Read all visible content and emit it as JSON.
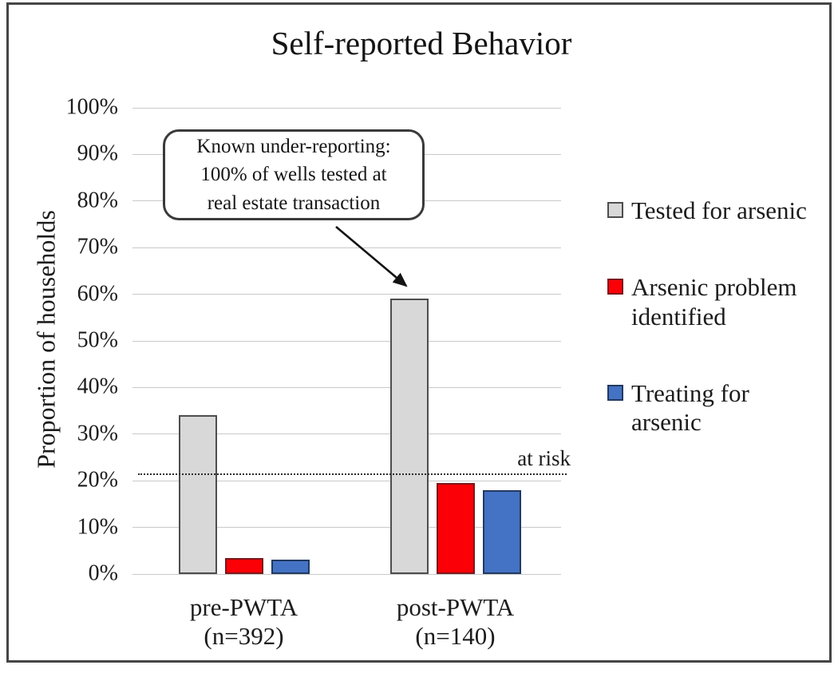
{
  "figure": {
    "background": "#ffffff",
    "border_color": "#454545"
  },
  "chart_data": {
    "type": "bar",
    "title": "Self-reported Behavior",
    "ylabel": "Proportion of households",
    "xlabel": "",
    "ylim": [
      0,
      100
    ],
    "ytick_step": 10,
    "ytick_labels": [
      "0%",
      "10%",
      "20%",
      "30%",
      "40%",
      "50%",
      "60%",
      "70%",
      "80%",
      "90%",
      "100%"
    ],
    "grid": true,
    "gridline_color": "#c9c9c9",
    "legend_position": "right",
    "categories": [
      "pre-PWTA\n(n=392)",
      "post-PWTA\n(n=140)"
    ],
    "series": [
      {
        "name": "Tested for arsenic",
        "fill": "#d8d8d8",
        "border": "#4d4d4d",
        "values": [
          34,
          59
        ]
      },
      {
        "name": "Arsenic problem identified",
        "fill": "#fb0006",
        "border": "#7c181c",
        "values": [
          3.5,
          19.5
        ]
      },
      {
        "name": "Treating for arsenic",
        "fill": "#4472c4",
        "border": "#22395f",
        "values": [
          3,
          18
        ]
      }
    ],
    "reference_line": {
      "value": 21.5,
      "label": "at risk",
      "style": "dotted",
      "color": "#2b2b2b"
    },
    "annotation": {
      "text": "Known under-reporting:\n100% of wells tested at\nreal estate transaction",
      "points_to": "post-PWTA Tested for arsenic bar"
    }
  }
}
